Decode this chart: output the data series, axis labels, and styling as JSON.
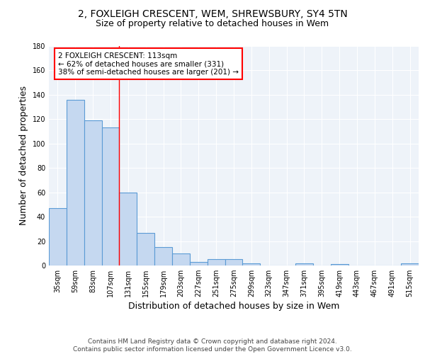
{
  "title_line1": "2, FOXLEIGH CRESCENT, WEM, SHREWSBURY, SY4 5TN",
  "title_line2": "Size of property relative to detached houses in Wem",
  "xlabel": "Distribution of detached houses by size in Wem",
  "ylabel": "Number of detached properties",
  "categories": [
    "35sqm",
    "59sqm",
    "83sqm",
    "107sqm",
    "131sqm",
    "155sqm",
    "179sqm",
    "203sqm",
    "227sqm",
    "251sqm",
    "275sqm",
    "299sqm",
    "323sqm",
    "347sqm",
    "371sqm",
    "395sqm",
    "419sqm",
    "443sqm",
    "467sqm",
    "491sqm",
    "515sqm"
  ],
  "values": [
    47,
    136,
    119,
    113,
    60,
    27,
    15,
    10,
    3,
    5,
    5,
    2,
    0,
    0,
    2,
    0,
    1,
    0,
    0,
    0,
    2
  ],
  "bar_color": "#c5d8f0",
  "bar_edge_color": "#5b9bd5",
  "red_line_x": 3.5,
  "annotation_text": "2 FOXLEIGH CRESCENT: 113sqm\n← 62% of detached houses are smaller (331)\n38% of semi-detached houses are larger (201) →",
  "annotation_box_color": "white",
  "annotation_box_edge_color": "red",
  "red_line_color": "red",
  "ylim": [
    0,
    180
  ],
  "yticks": [
    0,
    20,
    40,
    60,
    80,
    100,
    120,
    140,
    160,
    180
  ],
  "background_color": "#eef3f9",
  "footer_text": "Contains HM Land Registry data © Crown copyright and database right 2024.\nContains public sector information licensed under the Open Government Licence v3.0.",
  "title_fontsize": 10,
  "subtitle_fontsize": 9,
  "axis_label_fontsize": 9,
  "tick_fontsize": 7,
  "annotation_fontsize": 7.5,
  "footer_fontsize": 6.5
}
